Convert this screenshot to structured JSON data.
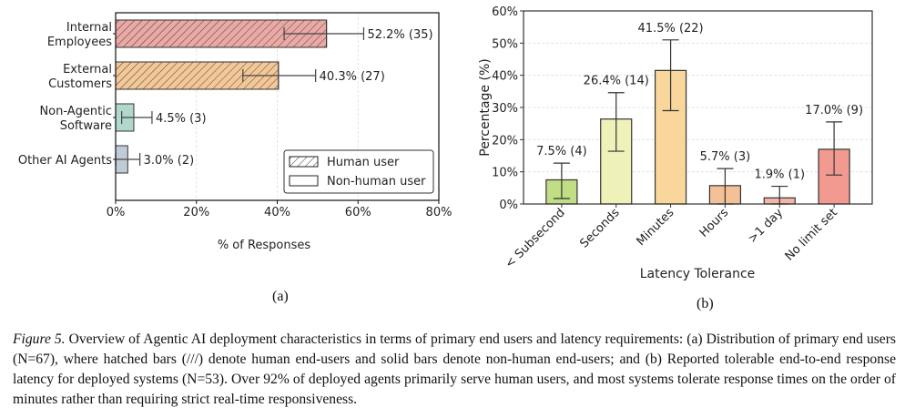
{
  "chart_data": [
    {
      "type": "bar",
      "orientation": "horizontal",
      "panel_label": "(a)",
      "title": "",
      "xlabel": "% of Responses",
      "ylabel": "",
      "xlim": [
        0,
        80
      ],
      "xticks": [
        "0%",
        "20%",
        "40%",
        "60%",
        "80%"
      ],
      "xtick_values": [
        0,
        20,
        40,
        60,
        80
      ],
      "grid": "vertical dashed",
      "categories": [
        "Internal\nEmployees",
        "External\nCustomers",
        "Non-Agentic\nSoftware",
        "Other AI Agents"
      ],
      "category_lines": [
        [
          "Internal",
          "Employees"
        ],
        [
          "External",
          "Customers"
        ],
        [
          "Non-Agentic",
          "Software"
        ],
        [
          "Other AI Agents"
        ]
      ],
      "values": [
        52.2,
        40.3,
        4.5,
        3.0
      ],
      "counts": [
        35,
        27,
        3,
        2
      ],
      "error_low": [
        41.7,
        31.5,
        1.5,
        0.0
      ],
      "error_high": [
        61.4,
        49.5,
        9.0,
        6.0
      ],
      "data_labels": [
        "52.2% (35)",
        "40.3% (27)",
        "4.5% (3)",
        "3.0% (2)"
      ],
      "hatched": [
        true,
        true,
        false,
        false
      ],
      "colors": [
        "#e8a09a",
        "#f2c18c",
        "#a9d4c6",
        "#b8c6d4"
      ],
      "legend": {
        "placement": "lower-right",
        "entries": [
          {
            "label": "Human user",
            "hatched": true
          },
          {
            "label": "Non-human user",
            "hatched": false
          }
        ]
      }
    },
    {
      "type": "bar",
      "orientation": "vertical",
      "panel_label": "(b)",
      "title": "",
      "xlabel": "Latency Tolerance",
      "ylabel": "Percentage (%)",
      "ylim": [
        0,
        60
      ],
      "yticks": [
        "0%",
        "10%",
        "20%",
        "30%",
        "40%",
        "50%",
        "60%"
      ],
      "ytick_values": [
        0,
        10,
        20,
        30,
        40,
        50,
        60
      ],
      "grid": "horizontal dashed",
      "categories": [
        "< Subsecond",
        "Seconds",
        "Minutes",
        "Hours",
        ">1 day",
        "No limit set"
      ],
      "values": [
        7.5,
        26.4,
        41.5,
        5.7,
        1.9,
        17.0
      ],
      "counts": [
        4,
        14,
        22,
        3,
        1,
        9
      ],
      "error_low": [
        1.7,
        16.4,
        29.0,
        0.0,
        0.0,
        9.0
      ],
      "error_high": [
        12.7,
        34.6,
        51.0,
        11.0,
        5.5,
        25.5
      ],
      "data_labels": [
        "7.5% (4)",
        "26.4% (14)",
        "41.5% (22)",
        "5.7% (3)",
        "1.9% (1)",
        "17.0% (9)"
      ],
      "colors": [
        "#c2de85",
        "#eff2b8",
        "#f9d79c",
        "#f4c095",
        "#f3b5a5",
        "#f29a8f"
      ]
    }
  ],
  "caption": {
    "label": "Figure 5.",
    "text": " Overview of Agentic AI deployment characteristics in terms of primary end users and latency requirements: (a) Distribution of primary end users (N=67), where hatched bars (///) denote human end-users and solid bars denote non-human end-users; and (b) Reported tolerable end-to-end response latency for deployed systems (N=53). Over 92% of deployed agents primarily serve human users, and most systems tolerate response times on the order of minutes rather than requiring strict real-time responsiveness."
  }
}
